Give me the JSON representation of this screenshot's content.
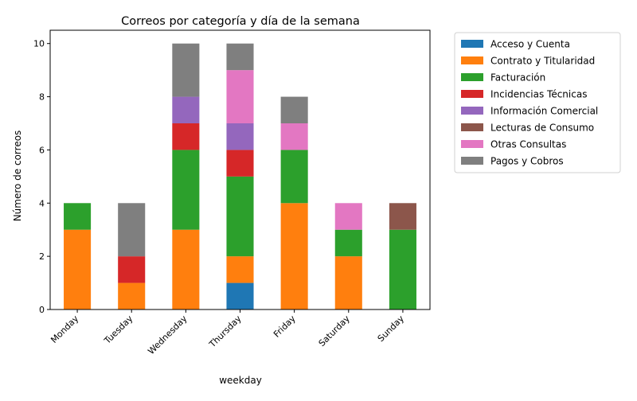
{
  "chart_data": {
    "type": "bar",
    "stacked": true,
    "title": "Correos por categoría y día de la semana",
    "xlabel": "weekday",
    "ylabel": "Número de correos",
    "ylim": [
      0,
      10.5
    ],
    "yticks": [
      0,
      2,
      4,
      6,
      8,
      10
    ],
    "grid": false,
    "legend_position": "outside-right",
    "categories": [
      "Monday",
      "Tuesday",
      "Wednesday",
      "Thursday",
      "Friday",
      "Saturday",
      "Sunday"
    ],
    "series": [
      {
        "name": "Acceso y Cuenta",
        "color": "#1f77b4",
        "values": [
          0,
          0,
          0,
          1,
          0,
          0,
          0
        ]
      },
      {
        "name": "Contrato y Titularidad",
        "color": "#ff7f0e",
        "values": [
          3,
          1,
          3,
          1,
          4,
          2,
          0
        ]
      },
      {
        "name": "Facturación",
        "color": "#2ca02c",
        "values": [
          1,
          0,
          3,
          3,
          2,
          1,
          3
        ]
      },
      {
        "name": "Incidencias Técnicas",
        "color": "#d62728",
        "values": [
          0,
          1,
          1,
          1,
          0,
          0,
          0
        ]
      },
      {
        "name": "Información Comercial",
        "color": "#9467bd",
        "values": [
          0,
          0,
          1,
          1,
          0,
          0,
          0
        ]
      },
      {
        "name": "Lecturas de Consumo",
        "color": "#8c564b",
        "values": [
          0,
          0,
          0,
          0,
          0,
          0,
          1
        ]
      },
      {
        "name": "Otras Consultas",
        "color": "#e377c2",
        "values": [
          0,
          0,
          0,
          2,
          1,
          1,
          0
        ]
      },
      {
        "name": "Pagos y Cobros",
        "color": "#7f7f7f",
        "values": [
          0,
          2,
          2,
          1,
          1,
          0,
          0
        ]
      }
    ]
  }
}
